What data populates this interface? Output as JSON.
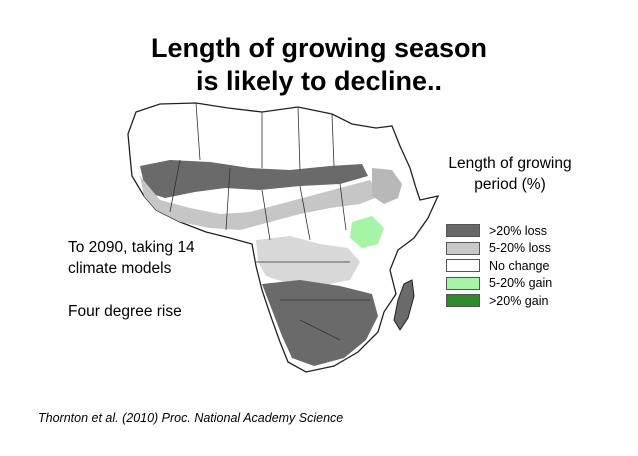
{
  "title_line1": "Length of growing season",
  "title_line2": "is likely to decline..",
  "legend": {
    "title_line1": "Length of growing",
    "title_line2": "period (%)",
    "items": [
      {
        "label": ">20% loss",
        "color": "#686868"
      },
      {
        "label": "5-20% loss",
        "color": "#c8c8c8"
      },
      {
        "label": "No change",
        "color": "#ffffff"
      },
      {
        "label": "5-20% gain",
        "color": "#a6f4a6"
      },
      {
        "label": ">20% gain",
        "color": "#2a8c2a"
      }
    ]
  },
  "notes": {
    "line1": "To 2090, taking 14",
    "line2": "climate models",
    "line3": "Four degree rise"
  },
  "citation": "Thornton et al. (2010) Proc. National Academy Science"
}
